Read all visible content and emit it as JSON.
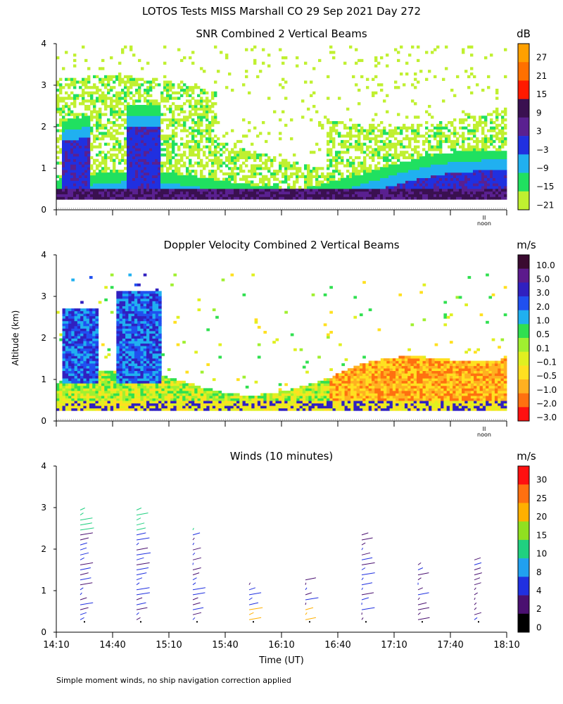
{
  "page_title": "LOTOS Tests MISS Marshall CO  29 Sep 2021 Day 272",
  "y_axis_label": "Altitude (km)",
  "x_axis_label": "Time (UT)",
  "footnote": "Simple moment winds, no ship navigation correction applied",
  "noon_label": "noon",
  "chart_data": [
    {
      "type": "heatmap",
      "title": "SNR Combined 2 Vertical Beams",
      "colorbar_unit": "dB",
      "colorbar_labels": [
        "27",
        "21",
        "15",
        "9",
        "3",
        "−3",
        "−9",
        "−15",
        "−21"
      ],
      "colorbar_colors": [
        "#ffa000",
        "#ff7000",
        "#ff1a00",
        "#3a1050",
        "#5a2090",
        "#2030e0",
        "#20b0f0",
        "#20e060",
        "#c0f030"
      ],
      "y_ticks": [
        "0",
        "1",
        "2",
        "3",
        "4"
      ],
      "ylim_km": [
        0,
        4
      ],
      "x_range_ut": [
        "14:10",
        "18:10"
      ],
      "structure": [
        {
          "band": "strong near-surface echo",
          "altitude_km": [
            0.2,
            0.8
          ],
          "color": "#2030e0"
        },
        {
          "band": "convective plume",
          "time_ut": "14:20",
          "top_km": 2.2
        },
        {
          "band": "convective plume",
          "time_ut": "14:53",
          "top_km": 2.4
        },
        {
          "band": "boundary layer rising",
          "time_ut": [
            "16:40",
            "18:10"
          ],
          "top_km": [
            0.7,
            1.2
          ]
        }
      ]
    },
    {
      "type": "heatmap",
      "title": "Doppler Velocity Combined 2 Vertical Beams",
      "colorbar_unit": "m/s",
      "colorbar_labels": [
        "10.0",
        "5.0",
        "3.0",
        "2.0",
        "1.0",
        "0.5",
        "0.1",
        "−0.1",
        "−0.5",
        "−1.0",
        "−2.0",
        "−3.0"
      ],
      "colorbar_colors": [
        "#3a0a30",
        "#5c1a8c",
        "#3020c0",
        "#2050f0",
        "#20b0f0",
        "#30e050",
        "#a0f030",
        "#e0f020",
        "#ffe020",
        "#ffb020",
        "#ff7010",
        "#ff1010"
      ],
      "y_ticks": [
        "0",
        "1",
        "2",
        "3",
        "4"
      ],
      "ylim_km": [
        0,
        4
      ],
      "x_range_ut": [
        "14:10",
        "18:10"
      ]
    },
    {
      "type": "scatter",
      "title": "Winds (10 minutes)",
      "colorbar_unit": "m/s",
      "colorbar_labels": [
        "30",
        "25",
        "20",
        "15",
        "10",
        "8",
        "4",
        "2",
        "0"
      ],
      "colorbar_colors": [
        "#ff1010",
        "#ff7010",
        "#ffb000",
        "#90e020",
        "#20d080",
        "#20a0f0",
        "#2030e0",
        "#4a1070",
        "#000000"
      ],
      "y_ticks": [
        "0",
        "1",
        "2",
        "3",
        "4"
      ],
      "x_ticks": [
        "14:10",
        "14:40",
        "15:10",
        "15:40",
        "16:10",
        "16:40",
        "17:10",
        "17:40",
        "18:10"
      ],
      "ylim_km": [
        0,
        4
      ],
      "profiles_time_ut": [
        "14:25",
        "14:55",
        "15:25",
        "15:55",
        "16:25",
        "16:55",
        "17:25",
        "17:55"
      ],
      "profile_tops_km": [
        3.0,
        3.0,
        2.5,
        1.2,
        1.3,
        2.4,
        1.7,
        1.8
      ]
    }
  ]
}
